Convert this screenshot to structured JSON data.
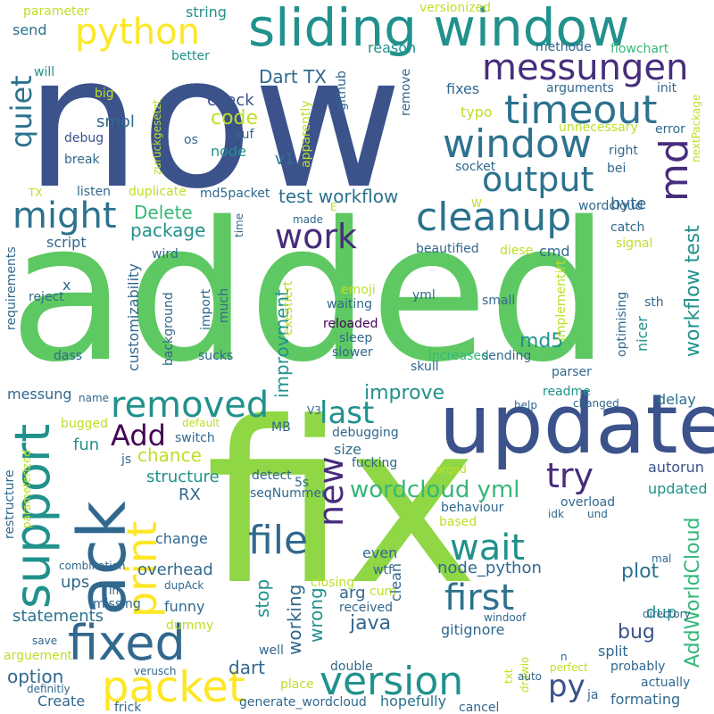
{
  "colors": {
    "c1": "#3b528b",
    "c2": "#5ec962",
    "c3": "#21918c",
    "c4": "#440154",
    "c5": "#fde725",
    "c6": "#2c728e",
    "c7": "#8fd744",
    "c8": "#35b779",
    "c9": "#31688e",
    "c10": "#472d7b",
    "c11": "#bddf26",
    "c12": "#1fa088"
  },
  "words": [
    {
      "text": "now",
      "color": "c1"
    },
    {
      "text": "added",
      "color": "c2"
    },
    {
      "text": "fix",
      "color": "c7"
    },
    {
      "text": "update",
      "color": "c1"
    },
    {
      "text": "sliding window",
      "color": "c3"
    },
    {
      "text": "messungen",
      "color": "c10"
    },
    {
      "text": "timeout",
      "color": "c6"
    },
    {
      "text": "window",
      "color": "c6"
    },
    {
      "text": "cleanup",
      "color": "c6"
    },
    {
      "text": "output",
      "color": "c6"
    },
    {
      "text": "python",
      "color": "c5"
    },
    {
      "text": "md",
      "color": "c10"
    },
    {
      "text": "ack",
      "color": "c9"
    },
    {
      "text": "support",
      "color": "c3"
    },
    {
      "text": "might",
      "color": "c6"
    },
    {
      "text": "removed",
      "color": "c3"
    },
    {
      "text": "fixed",
      "color": "c9"
    },
    {
      "text": "packet",
      "color": "c5"
    },
    {
      "text": "version",
      "color": "c3"
    },
    {
      "text": "file",
      "color": "c9"
    },
    {
      "text": "print",
      "color": "c5"
    },
    {
      "text": "wait",
      "color": "c3"
    },
    {
      "text": "first",
      "color": "c6"
    },
    {
      "text": "Add",
      "color": "c4"
    },
    {
      "text": "last",
      "color": "c3"
    },
    {
      "text": "new",
      "color": "c10"
    },
    {
      "text": "work",
      "color": "c10"
    },
    {
      "text": "try",
      "color": "c10"
    },
    {
      "text": "quiet",
      "color": "c6"
    },
    {
      "text": "wordcloud yml",
      "color": "c8"
    },
    {
      "text": "py",
      "color": "c1"
    },
    {
      "text": "workflow test",
      "color": "c3"
    },
    {
      "text": "AddWorldCloud",
      "color": "c8"
    },
    {
      "text": "test workflow",
      "color": "c6"
    },
    {
      "text": "Dart TX",
      "color": "c9"
    },
    {
      "text": "Delete",
      "color": "c8"
    },
    {
      "text": "package",
      "color": "c3"
    },
    {
      "text": "code",
      "color": "c11"
    },
    {
      "text": "check",
      "color": "c1"
    },
    {
      "text": "smol",
      "color": "c9"
    },
    {
      "text": "debug",
      "color": "c1"
    },
    {
      "text": "node",
      "color": "c3"
    },
    {
      "text": "v1",
      "color": "c6"
    },
    {
      "text": "md5",
      "color": "c3"
    },
    {
      "text": "improve",
      "color": "c3"
    },
    {
      "text": "improvment",
      "color": "c3"
    },
    {
      "text": "customizability",
      "color": "c9"
    },
    {
      "text": "structure",
      "color": "c3"
    },
    {
      "text": "chance",
      "color": "c11"
    },
    {
      "text": "fun",
      "color": "c3"
    },
    {
      "text": "messung",
      "color": "c9"
    },
    {
      "text": "statements",
      "color": "c6"
    },
    {
      "text": "ups",
      "color": "c9"
    },
    {
      "text": "option",
      "color": "c9"
    },
    {
      "text": "Create",
      "color": "c9"
    },
    {
      "text": "dart",
      "color": "c9"
    },
    {
      "text": "stop",
      "color": "c3"
    },
    {
      "text": "working",
      "color": "c9"
    },
    {
      "text": "wrong",
      "color": "c3"
    },
    {
      "text": "arg",
      "color": "c9"
    },
    {
      "text": "java",
      "color": "c9"
    },
    {
      "text": "node_python",
      "color": "c9"
    },
    {
      "text": "gitignore",
      "color": "c9"
    },
    {
      "text": "plot",
      "color": "c6"
    },
    {
      "text": "dup",
      "color": "c3"
    },
    {
      "text": "bug",
      "color": "c1"
    },
    {
      "text": "split",
      "color": "c9"
    },
    {
      "text": "formating",
      "color": "c9"
    },
    {
      "text": "hopefully",
      "color": "c6"
    },
    {
      "text": "delay",
      "color": "c6"
    },
    {
      "text": "autorun",
      "color": "c1"
    },
    {
      "text": "updated",
      "color": "c3"
    },
    {
      "text": "size",
      "color": "c6"
    },
    {
      "text": "readme",
      "color": "c3"
    },
    {
      "text": "byte",
      "color": "c9"
    },
    {
      "text": "cmd",
      "color": "c9"
    },
    {
      "text": "wordcloud",
      "color": "c9"
    },
    {
      "text": "arguments",
      "color": "c9"
    },
    {
      "text": "fixes",
      "color": "c9"
    },
    {
      "text": "init",
      "color": "c9"
    },
    {
      "text": "error",
      "color": "c9"
    },
    {
      "text": "reason",
      "color": "c3"
    },
    {
      "text": "string",
      "color": "c3"
    },
    {
      "text": "send",
      "color": "c6"
    },
    {
      "text": "parameter",
      "color": "c11"
    },
    {
      "text": "better",
      "color": "c3"
    },
    {
      "text": "will",
      "color": "c3"
    },
    {
      "text": "big",
      "color": "c11"
    },
    {
      "text": "os",
      "color": "c9"
    },
    {
      "text": "auf",
      "color": "c9"
    },
    {
      "text": "github",
      "color": "c9"
    },
    {
      "text": "remove",
      "color": "c9"
    },
    {
      "text": "typo",
      "color": "c11"
    },
    {
      "text": "unnecessary",
      "color": "c11"
    },
    {
      "text": "right",
      "color": "c9"
    },
    {
      "text": "bei",
      "color": "c9"
    },
    {
      "text": "socket",
      "color": "c9"
    },
    {
      "text": "versionized",
      "color": "c11"
    },
    {
      "text": "methode",
      "color": "c9"
    },
    {
      "text": "flowchart",
      "color": "c8"
    },
    {
      "text": "beautified",
      "color": "c9"
    },
    {
      "text": "catch",
      "color": "c9"
    },
    {
      "text": "signal",
      "color": "c11"
    },
    {
      "text": "diese",
      "color": "c11"
    },
    {
      "text": "emoji",
      "color": "c11"
    },
    {
      "text": "waiting",
      "color": "c9"
    },
    {
      "text": "reloaded",
      "color": "c4"
    },
    {
      "text": "sleep",
      "color": "c9"
    },
    {
      "text": "slower",
      "color": "c9"
    },
    {
      "text": "increased",
      "color": "c8"
    },
    {
      "text": "sending",
      "color": "c9"
    },
    {
      "text": "skull",
      "color": "c9"
    },
    {
      "text": "parser",
      "color": "c9"
    },
    {
      "text": "small",
      "color": "c9"
    },
    {
      "text": "sth",
      "color": "c9"
    },
    {
      "text": "nicer",
      "color": "c3"
    },
    {
      "text": "optimising",
      "color": "c9"
    },
    {
      "text": "implementirt",
      "color": "c11"
    },
    {
      "text": "exestiert",
      "color": "c11"
    },
    {
      "text": "import",
      "color": "c9"
    },
    {
      "text": "much",
      "color": "c9"
    },
    {
      "text": "background",
      "color": "c9"
    },
    {
      "text": "sucks",
      "color": "c9"
    },
    {
      "text": "dass",
      "color": "c9"
    },
    {
      "text": "yml",
      "color": "c9"
    },
    {
      "text": "wird",
      "color": "c9"
    },
    {
      "text": "made",
      "color": "c9"
    },
    {
      "text": "time",
      "color": "c9"
    },
    {
      "text": "E",
      "color": "c11"
    },
    {
      "text": "W",
      "color": "c11"
    },
    {
      "text": "x",
      "color": "c9"
    },
    {
      "text": "reject",
      "color": "c9"
    },
    {
      "text": "script",
      "color": "c9"
    },
    {
      "text": "requirements",
      "color": "c9"
    },
    {
      "text": "listen",
      "color": "c9"
    },
    {
      "text": "duplicate",
      "color": "c11"
    },
    {
      "text": "md5packet",
      "color": "c9"
    },
    {
      "text": "TX",
      "color": "c11"
    },
    {
      "text": "break",
      "color": "c9"
    },
    {
      "text": "zurückgesetzt",
      "color": "c11"
    },
    {
      "text": "apparently",
      "color": "c11"
    },
    {
      "text": "nextPackage",
      "color": "c11"
    },
    {
      "text": "name",
      "color": "c9"
    },
    {
      "text": "default",
      "color": "c11"
    },
    {
      "text": "bugged",
      "color": "c11"
    },
    {
      "text": "switch",
      "color": "c9"
    },
    {
      "text": "js",
      "color": "c9"
    },
    {
      "text": "MB",
      "color": "c9"
    },
    {
      "text": "V3",
      "color": "c9"
    },
    {
      "text": "debugging",
      "color": "c9"
    },
    {
      "text": "fucking",
      "color": "c9"
    },
    {
      "text": "detect",
      "color": "c9"
    },
    {
      "text": "5s",
      "color": "c9"
    },
    {
      "text": "seqNummer",
      "color": "c9"
    },
    {
      "text": "RX",
      "color": "c9"
    },
    {
      "text": "change",
      "color": "c9"
    },
    {
      "text": "overhead",
      "color": "c9"
    },
    {
      "text": "funny",
      "color": "c9"
    },
    {
      "text": "dupAck",
      "color": "c9"
    },
    {
      "text": "dummy",
      "color": "c11"
    },
    {
      "text": "Im",
      "color": "c9"
    },
    {
      "text": "missing",
      "color": "c9"
    },
    {
      "text": "combination",
      "color": "c9"
    },
    {
      "text": "restructure",
      "color": "c9"
    },
    {
      "text": "parameterized",
      "color": "c11"
    },
    {
      "text": "save",
      "color": "c9"
    },
    {
      "text": "arguement",
      "color": "c11"
    },
    {
      "text": "definitly",
      "color": "c9"
    },
    {
      "text": "verusch",
      "color": "c9"
    },
    {
      "text": "frick",
      "color": "c9"
    },
    {
      "text": "well",
      "color": "c9"
    },
    {
      "text": "place",
      "color": "c11"
    },
    {
      "text": "generate_wordcloud",
      "color": "c9"
    },
    {
      "text": "double",
      "color": "c9"
    },
    {
      "text": "closing",
      "color": "c11"
    },
    {
      "text": "cum",
      "color": "c11"
    },
    {
      "text": "received",
      "color": "c9"
    },
    {
      "text": "wtf",
      "color": "c9"
    },
    {
      "text": "even",
      "color": "c9"
    },
    {
      "text": "clean",
      "color": "c9"
    },
    {
      "text": "windoof",
      "color": "c9"
    },
    {
      "text": "drawio",
      "color": "c11"
    },
    {
      "text": "txt",
      "color": "c11"
    },
    {
      "text": "auto",
      "color": "c9"
    },
    {
      "text": "ja",
      "color": "c9"
    },
    {
      "text": "cancel",
      "color": "c9"
    },
    {
      "text": "n",
      "color": "c9"
    },
    {
      "text": "perfect",
      "color": "c11"
    },
    {
      "text": "probably",
      "color": "c9"
    },
    {
      "text": "actually",
      "color": "c9"
    },
    {
      "text": "directory",
      "color": "c9"
    },
    {
      "text": "mal",
      "color": "c9"
    },
    {
      "text": "overload",
      "color": "c9"
    },
    {
      "text": "idk",
      "color": "c9"
    },
    {
      "text": "und",
      "color": "c9"
    },
    {
      "text": "based",
      "color": "c11"
    },
    {
      "text": "behaviour",
      "color": "c9"
    },
    {
      "text": "help",
      "color": "c9"
    },
    {
      "text": "changed",
      "color": "c9"
    },
    {
      "text": "arged",
      "color": "c11"
    },
    {
      "text": "Create",
      "color": "c9"
    }
  ]
}
